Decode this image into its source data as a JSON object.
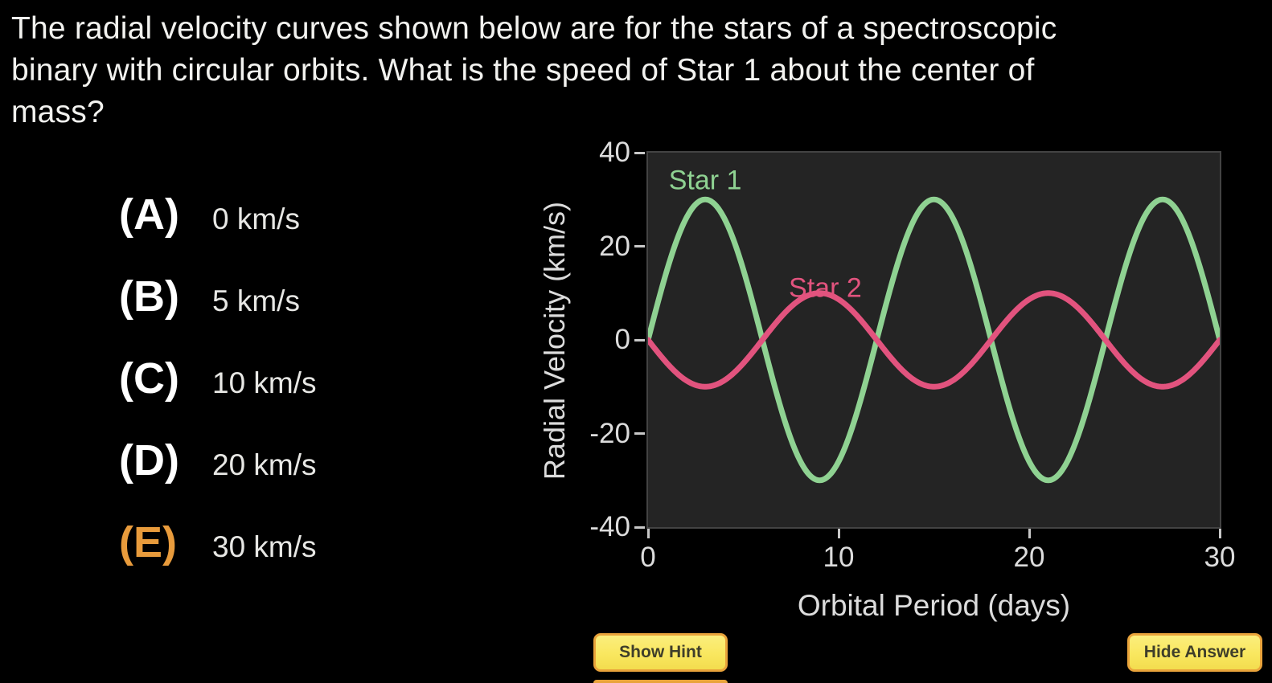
{
  "question": {
    "lines": [
      "The radial velocity curves shown below are for the stars of a spectroscopic",
      "binary with circular orbits. What is the speed of Star 1 about the center of",
      "mass?"
    ]
  },
  "options": [
    {
      "letter": "(A)",
      "text": "0 km/s",
      "highlighted": false
    },
    {
      "letter": "(B)",
      "text": "5 km/s",
      "highlighted": false
    },
    {
      "letter": "(C)",
      "text": "10 km/s",
      "highlighted": false
    },
    {
      "letter": "(D)",
      "text": "20 km/s",
      "highlighted": false
    },
    {
      "letter": "(E)",
      "text": "30 km/s",
      "highlighted": true
    }
  ],
  "buttons": {
    "show_hint": "Show Hint",
    "hide_answer": "Hide Answer"
  },
  "colors": {
    "page-bg": "#000000",
    "text-primary": "#F2F2EF",
    "option-letter": "#FFFFFF",
    "answer-highlight": "#E89B3C",
    "plot-bg": "#242424",
    "plot-border": "#434343",
    "axis-text": "#DCDCDC",
    "tick-mark": "#C8C8C8",
    "button-bg": "#F9E75F",
    "button-bg-top": "#FBEE7D",
    "button-border": "#E9A33B",
    "button-text": "#3F3E2A"
  },
  "chart_data": {
    "type": "line",
    "title": "",
    "xlabel": "Orbital Period (days)",
    "ylabel": "Radial Velocity (km/s)",
    "xlim": [
      0,
      30
    ],
    "ylim": [
      -40,
      40
    ],
    "xticks": [
      0,
      10,
      20,
      30
    ],
    "yticks": [
      40,
      20,
      0,
      -20,
      -40
    ],
    "grid": false,
    "legend": "inline-curve-labels",
    "series": [
      {
        "name": "Star 1",
        "color": "#8FD292",
        "shape": "sine",
        "amplitude_km_s": 30,
        "period_days": 12,
        "phase_days": 0,
        "label_pos": {
          "x": 3,
          "y": 34
        },
        "key_points": [
          [
            0,
            0
          ],
          [
            3,
            30
          ],
          [
            6,
            0
          ],
          [
            9,
            -30
          ],
          [
            12,
            0
          ],
          [
            15,
            30
          ],
          [
            18,
            0
          ],
          [
            21,
            -30
          ],
          [
            24,
            0
          ],
          [
            27,
            30
          ],
          [
            30,
            0
          ]
        ]
      },
      {
        "name": "Star 2",
        "color": "#E2537E",
        "shape": "sine",
        "amplitude_km_s": 10,
        "period_days": 12,
        "phase_days": 6,
        "label_pos": {
          "x": 9.3,
          "y": 11
        },
        "key_points": [
          [
            0,
            0
          ],
          [
            3,
            -10
          ],
          [
            6,
            0
          ],
          [
            9,
            10
          ],
          [
            12,
            0
          ],
          [
            15,
            -10
          ],
          [
            18,
            0
          ],
          [
            21,
            10
          ],
          [
            24,
            0
          ],
          [
            27,
            -10
          ],
          [
            30,
            0
          ]
        ]
      }
    ]
  }
}
